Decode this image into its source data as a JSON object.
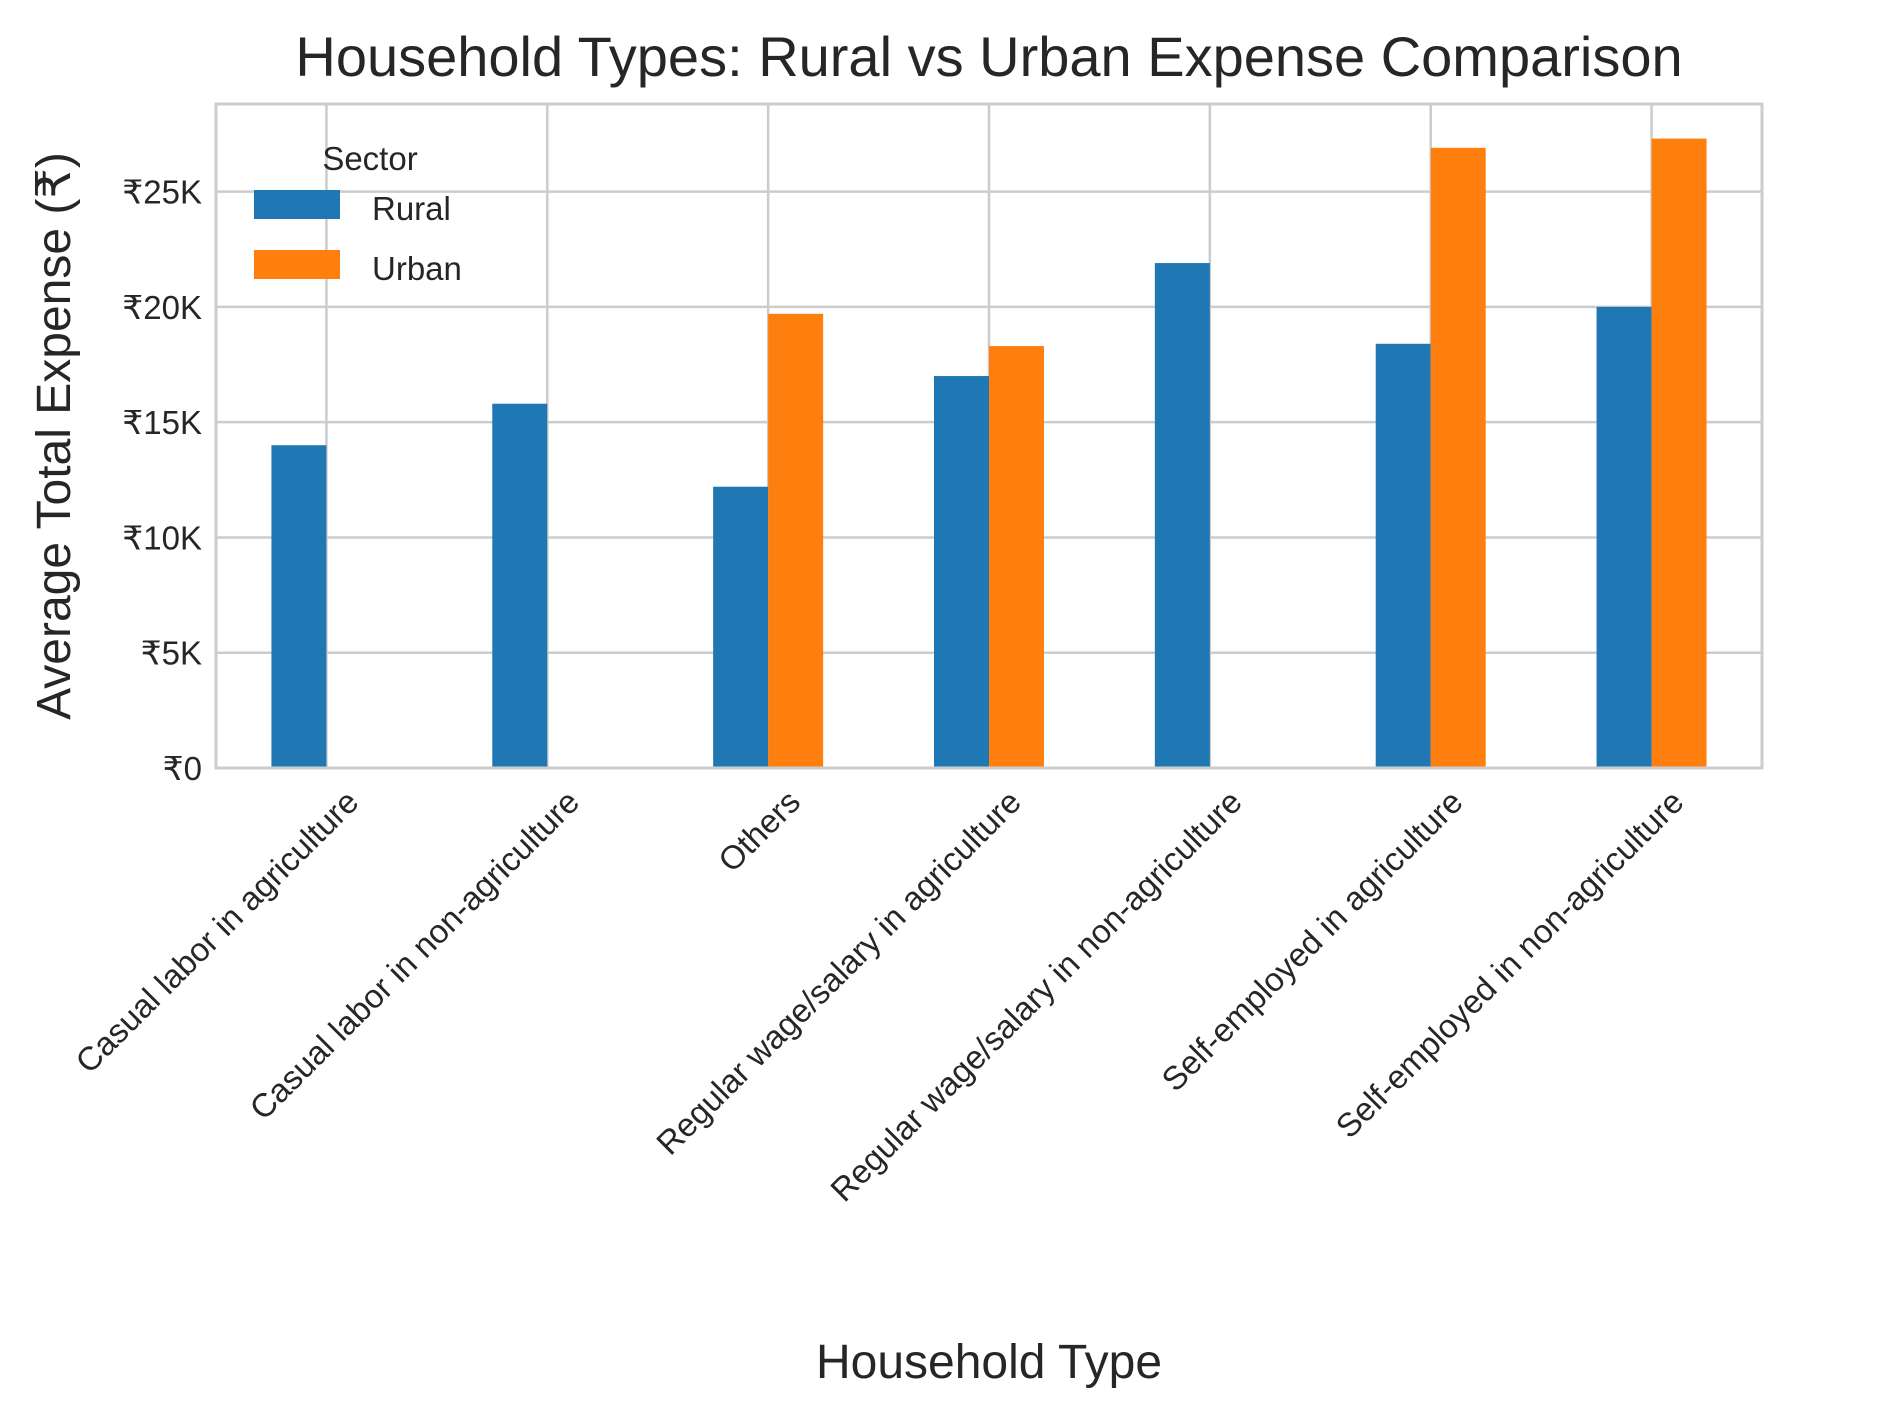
{
  "chart_data": {
    "type": "bar",
    "title": "Household Types: Rural vs Urban Expense Comparison",
    "xlabel": "Household Type",
    "ylabel": "Average Total Expense (₹)",
    "categories": [
      "Casual labor in agriculture",
      "Casual labor in non-agriculture",
      "Others",
      "Regular wage/salary in agriculture",
      "Regular wage/salary in non-agriculture",
      "Self-employed in agriculture",
      "Self-employed in non-agriculture"
    ],
    "series": [
      {
        "name": "Rural",
        "color": "#1f77b4",
        "values": [
          14000,
          15800,
          12200,
          17000,
          21900,
          18400,
          20000
        ]
      },
      {
        "name": "Urban",
        "color": "#ff7f0e",
        "values": [
          null,
          null,
          19700,
          18300,
          null,
          26900,
          27300
        ]
      }
    ],
    "ylim": [
      0,
      28800
    ],
    "yticks": [
      0,
      5000,
      10000,
      15000,
      20000,
      25000
    ],
    "ytick_labels": [
      "₹0",
      "₹5K",
      "₹10K",
      "₹15K",
      "₹20K",
      "₹25K"
    ],
    "legend": {
      "title": "Sector",
      "placement": "top-left"
    },
    "grid": true
  }
}
